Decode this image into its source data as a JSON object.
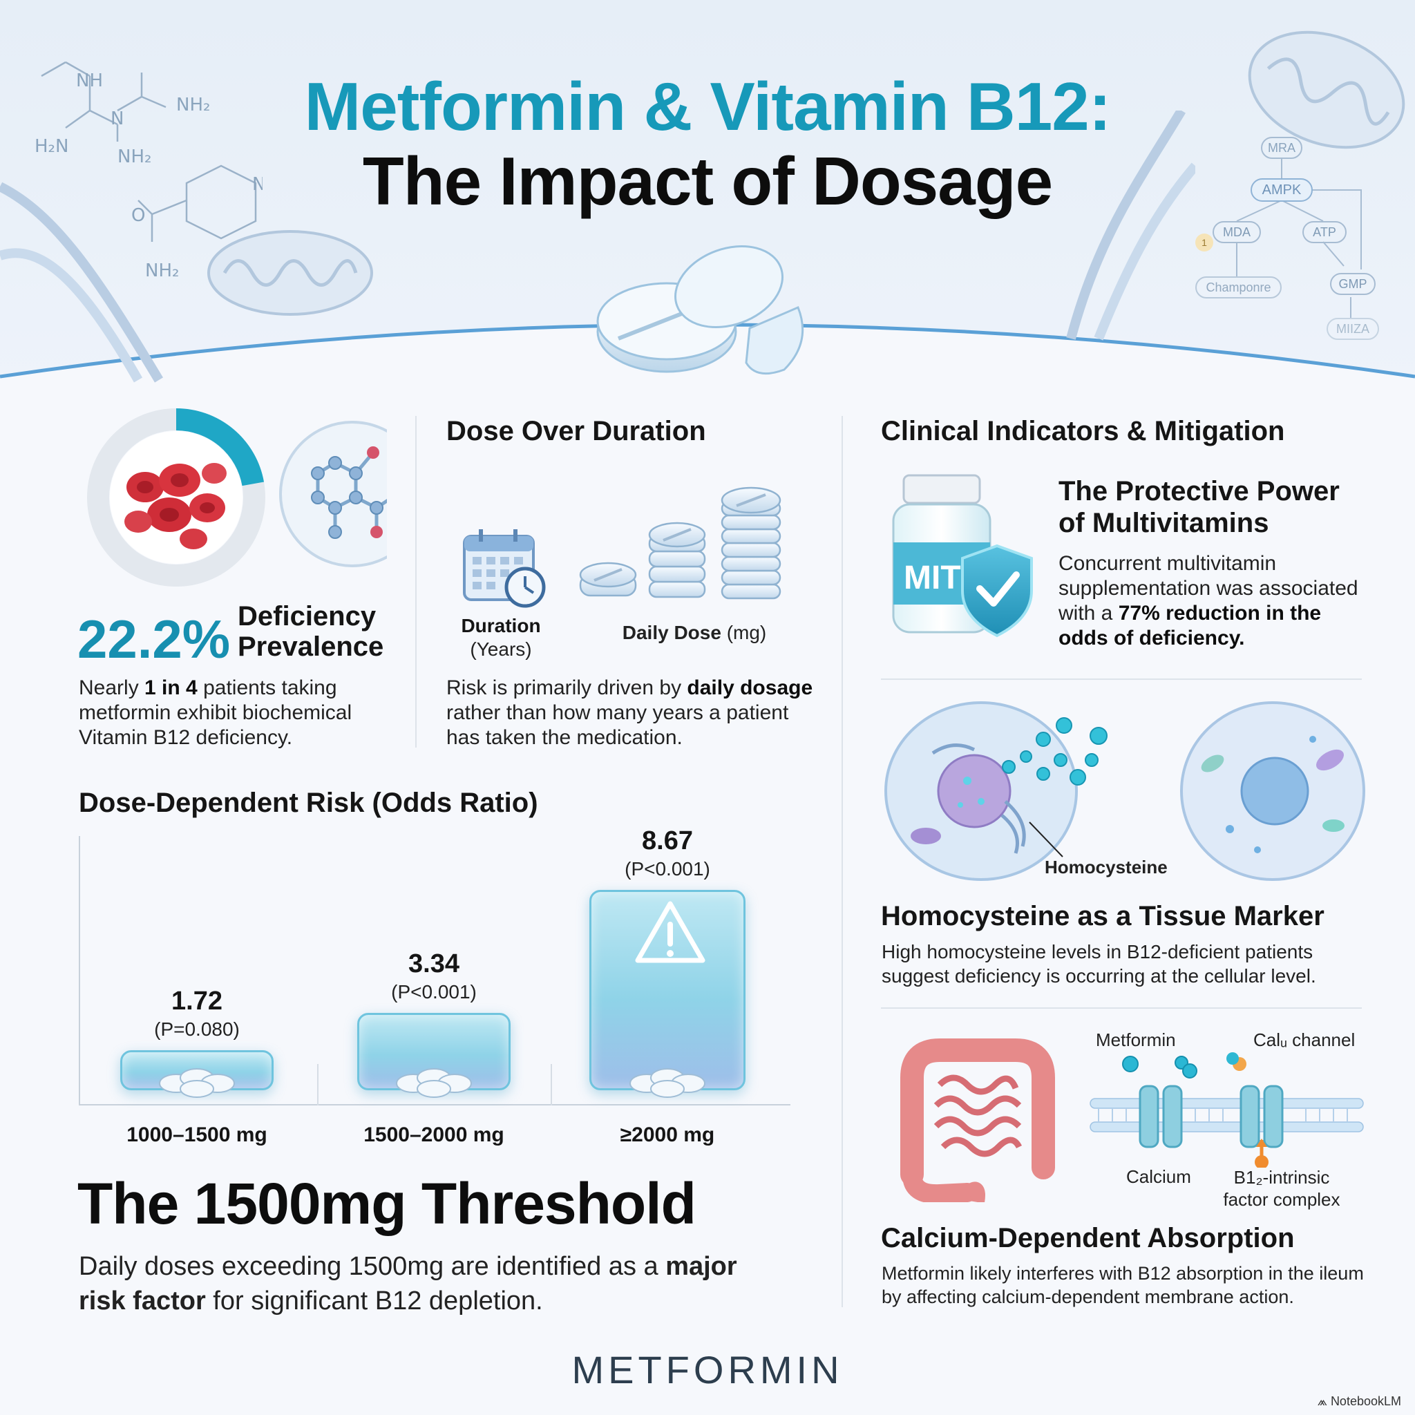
{
  "title": {
    "line1": "Metformin & Vitamin B12:",
    "line2": "The Impact of Dosage"
  },
  "header_chem": {
    "nh": "NH",
    "nh2_a": "NH₂",
    "h2n": "H₂N",
    "n": "N",
    "nh2_b": "NH₂",
    "o": "O",
    "nh2_c": "NH₂",
    "nh2_d": "NH₂"
  },
  "pathway": {
    "mra": "MRA",
    "ampk": "AMPK",
    "mda": "MDA",
    "atp": "ATP",
    "gmp": "GMP",
    "champonre": "Champonre",
    "miiza": "MIIZA",
    "badge": "1"
  },
  "prevalence": {
    "value": "22.2%",
    "label_line1": "Deficiency",
    "label_line2": "Prevalence",
    "text_pre": "Nearly ",
    "text_bold": "1 in 4",
    "text_post": " patients taking metformin exhibit biochemical Vitamin B12 deficiency.",
    "ring_fraction": 0.222
  },
  "dose_duration": {
    "title": "Dose Over Duration",
    "duration_label": "Duration",
    "duration_unit": "(Years)",
    "dose_label": "Daily Dose",
    "dose_unit": " (mg)",
    "text_pre": "Risk is primarily driven by ",
    "text_bold": "daily dosage",
    "text_post": " rather than how many years a patient has taken the medication."
  },
  "chart_data": {
    "type": "bar",
    "title": "Dose-Dependent Risk (Odds Ratio)",
    "categories": [
      "1000–1500 mg",
      "1500–2000 mg",
      "≥2000 mg"
    ],
    "values": [
      1.72,
      3.34,
      8.67
    ],
    "value_labels": [
      "1.72",
      "3.34",
      "8.67"
    ],
    "p_values": [
      "(P=0.080)",
      "(P<0.001)",
      "(P<0.001)"
    ],
    "ylim": [
      0,
      8.67
    ]
  },
  "threshold": {
    "title": "The 1500mg Threshold",
    "text_pre": "Daily doses exceeding 1500mg are identified as a ",
    "text_bold": "major risk factor",
    "text_post": " for significant B12 depletion."
  },
  "clinical": {
    "title": "Clinical Indicators & Mitigation",
    "multivitamin": {
      "title_line1": "The Protective Power",
      "title_line2": "of Multivitamins",
      "bottle_label": "MIT",
      "text_pre": "Concurrent multivitamin supplementation was associated with a ",
      "text_bold": "77% reduction in the odds of deficiency."
    },
    "homocysteine": {
      "callout": "Homocysteine",
      "title": "Homocysteine as a Tissue Marker",
      "text": "High homocysteine levels in B12-deficient patients suggest deficiency is occurring at the cellular level."
    },
    "calcium": {
      "metformin_label": "Metformin",
      "channel_label": "Calᵤ channel",
      "calcium_label": "Calcium",
      "complex_line1": "B1₂-intrinsic",
      "complex_line2": "factor complex",
      "title": "Calcium-Dependent Absorption",
      "text": "Metformin likely interferes with B12 absorption in the ileum by affecting calcium-dependent membrane action."
    }
  },
  "footer": {
    "logo": "METFORMIN",
    "credit": "NotebookLM"
  },
  "colors": {
    "accent": "#1799b9",
    "dark": "#0d0d0d",
    "bar": "#8fd3e8",
    "red_cell": "#d0303a"
  }
}
